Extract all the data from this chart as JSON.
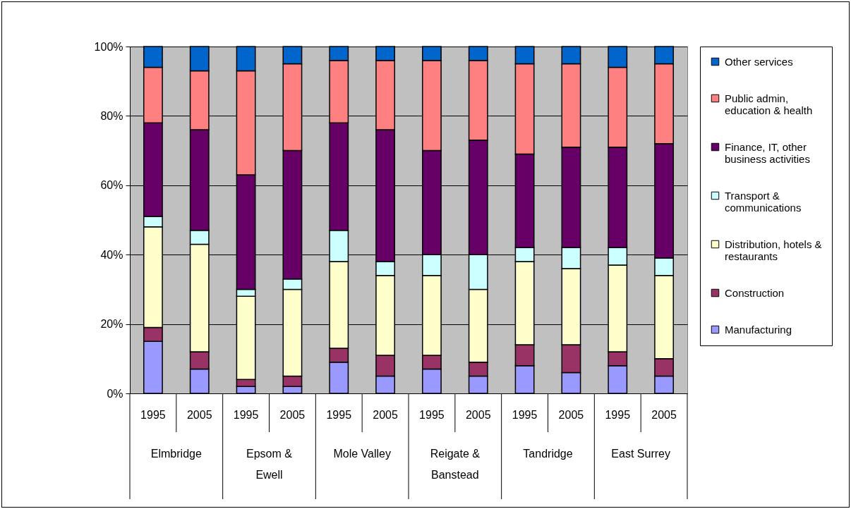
{
  "chart_data": {
    "type": "bar",
    "stacked": true,
    "categories": [
      "1995",
      "2005",
      "1995",
      "2005",
      "1995",
      "2005",
      "1995",
      "2005",
      "1995",
      "2005",
      "1995",
      "2005"
    ],
    "annotations": [
      "Elmbridge",
      "Epsom & Ewell",
      "Mole Valley",
      "Reigate & Banstead",
      "Tandridge",
      "East Surrey"
    ],
    "series": [
      {
        "name": "Manufacturing",
        "color": "#9999ff",
        "values": [
          15,
          7,
          2,
          2,
          9,
          5,
          7,
          5,
          8,
          6,
          8,
          5
        ]
      },
      {
        "name": "Construction",
        "color": "#993366",
        "values": [
          4,
          5,
          2,
          3,
          4,
          6,
          4,
          4,
          6,
          8,
          4,
          5
        ]
      },
      {
        "name": "Distribution, hotels & restaurants",
        "color": "#ffffcc",
        "values": [
          29,
          31,
          24,
          25,
          25,
          23,
          23,
          21,
          24,
          22,
          25,
          24
        ]
      },
      {
        "name": "Transport & communications",
        "color": "#ccffff",
        "values": [
          3,
          4,
          2,
          3,
          9,
          4,
          6,
          10,
          4,
          6,
          5,
          5
        ]
      },
      {
        "name": "Finance, IT, other business activities",
        "color": "#660066",
        "values": [
          27,
          29,
          33,
          37,
          31,
          38,
          30,
          33,
          27,
          29,
          29,
          33
        ]
      },
      {
        "name": "Public admin, education & health",
        "color": "#ff8080",
        "values": [
          16,
          17,
          30,
          25,
          18,
          20,
          26,
          23,
          26,
          24,
          23,
          23
        ]
      },
      {
        "name": "Other services",
        "color": "#0066cc",
        "values": [
          6,
          7,
          7,
          5,
          4,
          4,
          4,
          4,
          5,
          5,
          6,
          5
        ]
      }
    ],
    "ylim": [
      0,
      100
    ],
    "yticks": [
      {
        "value": 0,
        "label": "0%"
      },
      {
        "value": 20,
        "label": "20%"
      },
      {
        "value": 40,
        "label": "40%"
      },
      {
        "value": 60,
        "label": "60%"
      },
      {
        "value": 80,
        "label": "80%"
      },
      {
        "value": 100,
        "label": "100%"
      }
    ],
    "grid": "y",
    "legend": "right"
  }
}
